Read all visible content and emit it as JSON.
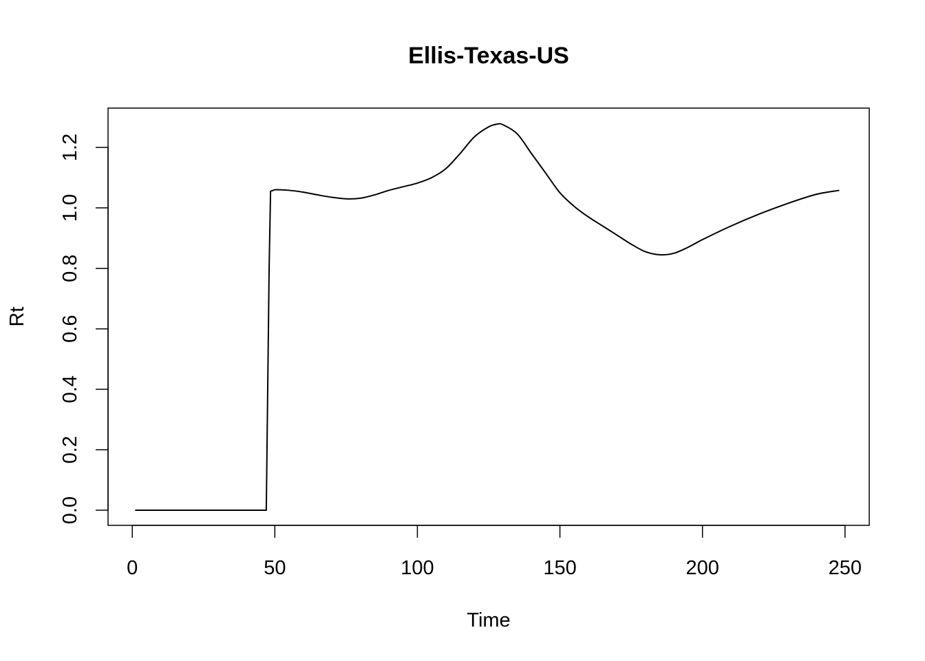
{
  "chart_data": {
    "type": "line",
    "title": "Ellis-Texas-US",
    "xlabel": "Time",
    "ylabel": "Rt",
    "xlim": [
      -8.5,
      258.5
    ],
    "ylim": [
      -0.05,
      1.33
    ],
    "xticks": [
      "0",
      "50",
      "100",
      "150",
      "200",
      "250"
    ],
    "yticks": [
      "0.0",
      "0.2",
      "0.4",
      "0.6",
      "0.8",
      "1.0",
      "1.2"
    ],
    "grid": false,
    "legend": "none",
    "series": [
      {
        "color": "#000000",
        "x": [
          1,
          10,
          20,
          30,
          40,
          47,
          47.5,
          48,
          48.5,
          50,
          55,
          60,
          65,
          70,
          75,
          80,
          85,
          90,
          95,
          100,
          105,
          110,
          115,
          120,
          125,
          128,
          130,
          135,
          140,
          145,
          150,
          155,
          160,
          165,
          170,
          175,
          180,
          185,
          190,
          195,
          200,
          210,
          220,
          230,
          240,
          248
        ],
        "y": [
          0,
          0,
          0,
          0,
          0,
          0,
          0.4,
          0.8,
          1.055,
          1.06,
          1.058,
          1.052,
          1.043,
          1.035,
          1.03,
          1.032,
          1.043,
          1.058,
          1.07,
          1.082,
          1.1,
          1.13,
          1.18,
          1.235,
          1.268,
          1.277,
          1.275,
          1.245,
          1.18,
          1.115,
          1.05,
          1.005,
          0.97,
          0.94,
          0.91,
          0.88,
          0.855,
          0.845,
          0.85,
          0.87,
          0.895,
          0.94,
          0.98,
          1.015,
          1.045,
          1.058
        ]
      }
    ]
  }
}
